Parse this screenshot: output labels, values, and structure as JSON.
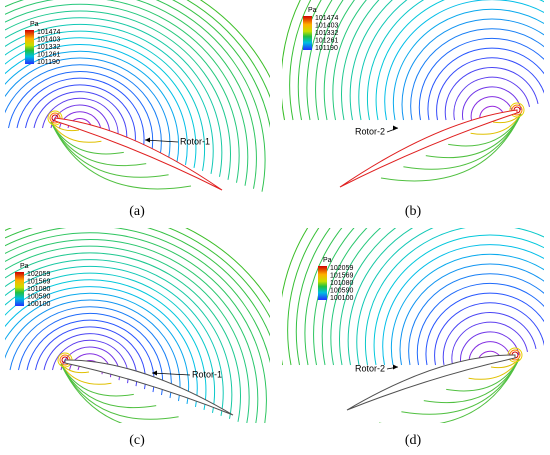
{
  "panels": [
    {
      "caption": "(a)",
      "legend": {
        "unit": "Pa",
        "ticks": [
          101474,
          101403,
          101332,
          101261,
          101190
        ]
      },
      "annotation": "Rotor-1"
    },
    {
      "caption": "(b)",
      "legend": {
        "unit": "Pa",
        "ticks": [
          101474,
          101403,
          101332,
          101261,
          101190
        ]
      },
      "annotation": "Rotor-2"
    },
    {
      "caption": "(c)",
      "legend": {
        "unit": "Pa",
        "ticks": [
          102059,
          101569,
          101080,
          100590,
          100100
        ]
      },
      "annotation": "Rotor-1"
    },
    {
      "caption": "(d)",
      "legend": {
        "unit": "Pa",
        "ticks": [
          102059,
          101569,
          101080,
          100590,
          100100
        ]
      },
      "annotation": "Rotor-2"
    }
  ]
}
